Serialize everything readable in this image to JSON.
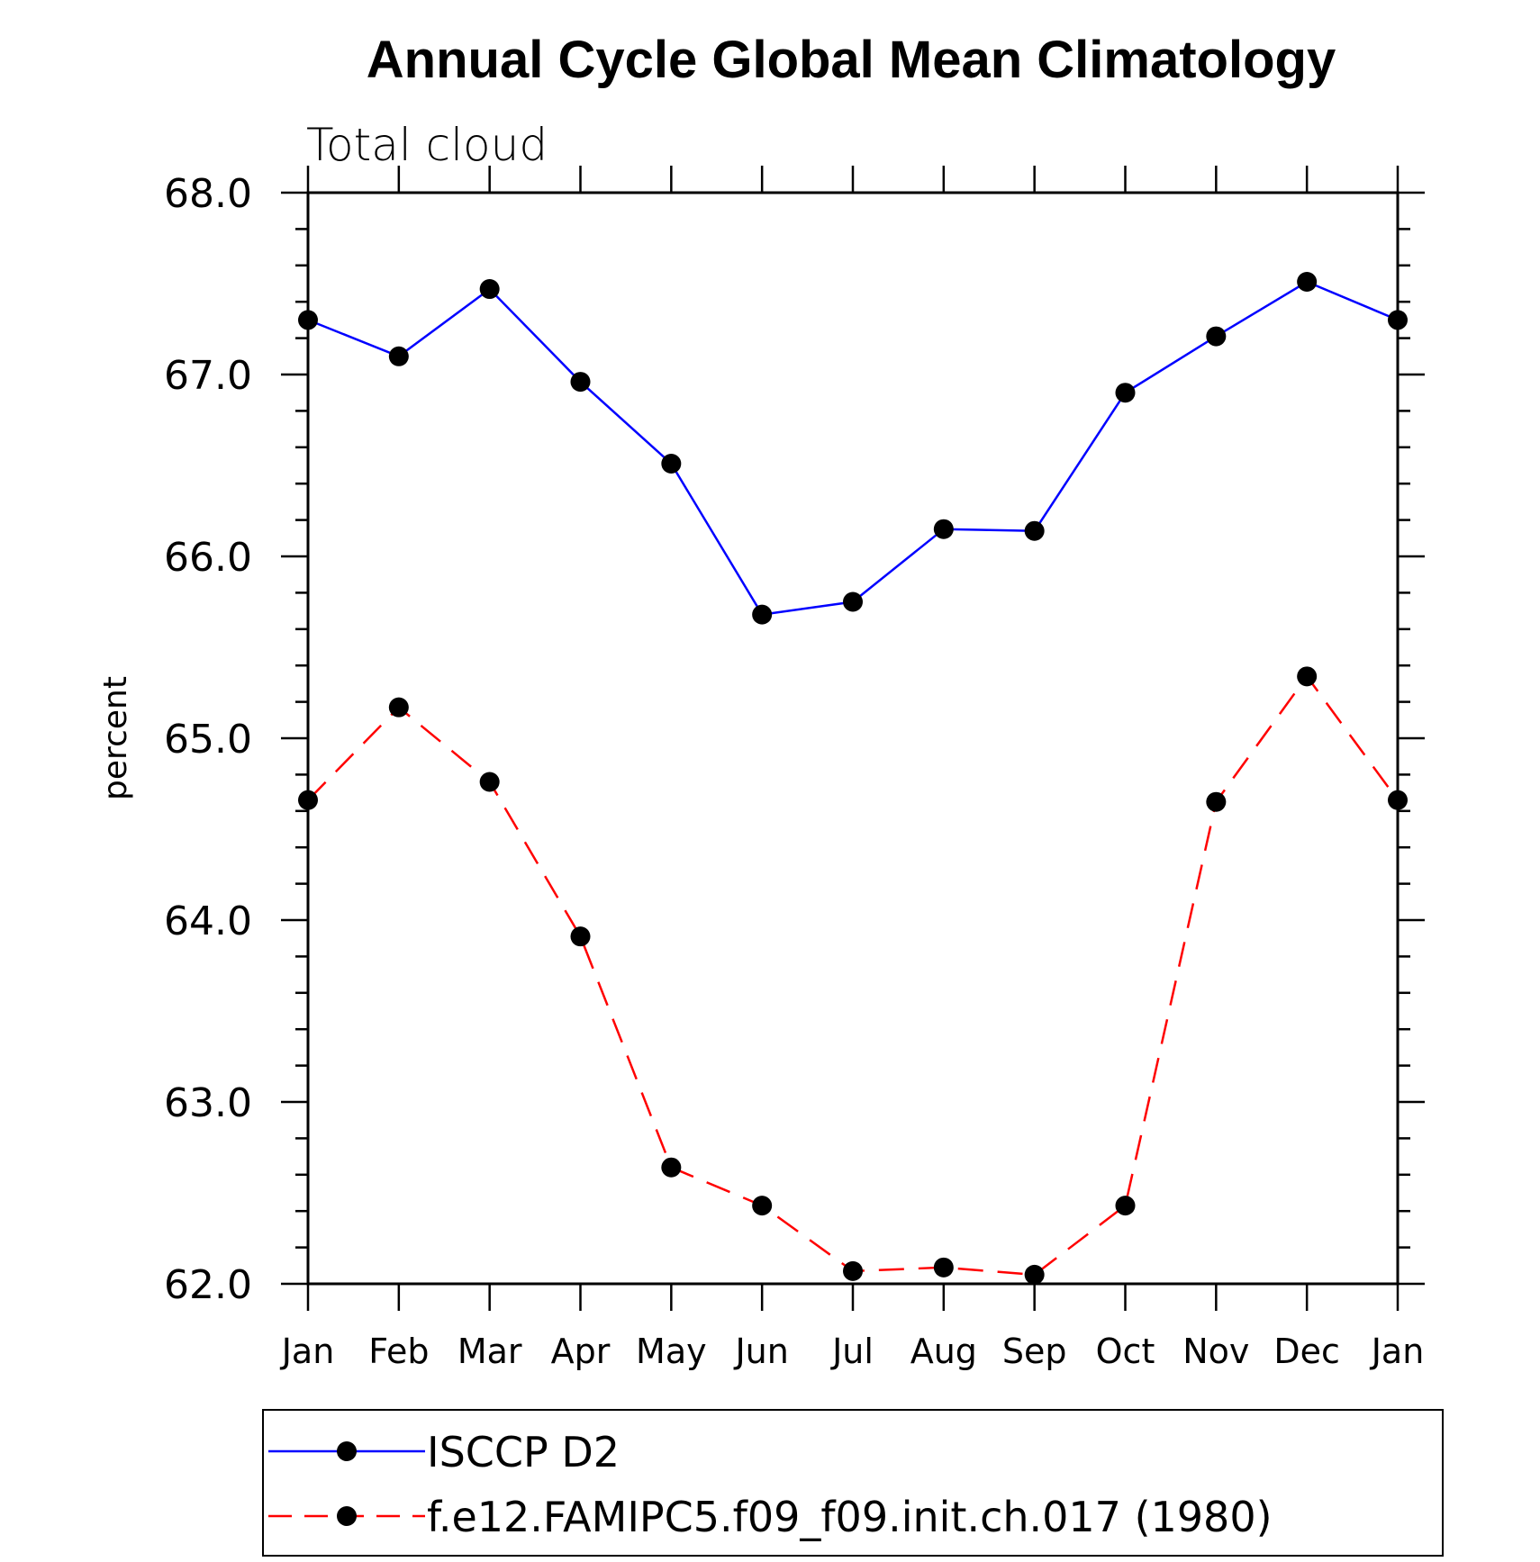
{
  "chart_data": {
    "type": "line",
    "title": "Annual Cycle Global Mean Climatology",
    "subtitle": "Total cloud",
    "xlabel": "",
    "ylabel": "percent",
    "categories": [
      "Jan",
      "Feb",
      "Mar",
      "Apr",
      "May",
      "Jun",
      "Jul",
      "Aug",
      "Sep",
      "Oct",
      "Nov",
      "Dec",
      "Jan"
    ],
    "ylim": [
      62.0,
      68.0
    ],
    "yticks": [
      "62.0",
      "63.0",
      "64.0",
      "65.0",
      "66.0",
      "67.0",
      "68.0"
    ],
    "grid": false,
    "legend_position": "bottom",
    "series": [
      {
        "name": "ISCCP D2",
        "color": "#0000ff",
        "dash": "solid",
        "marker": "filled-circle",
        "values": [
          67.3,
          67.1,
          67.47,
          66.96,
          66.51,
          65.68,
          65.75,
          66.15,
          66.14,
          66.9,
          67.21,
          67.51,
          67.3
        ]
      },
      {
        "name": "f.e12.FAMIPC5.f09_f09.init.ch.017 (1980)",
        "color": "#ff0000",
        "dash": "dashed",
        "marker": "filled-circle",
        "values": [
          64.66,
          65.17,
          64.76,
          63.91,
          62.64,
          62.43,
          62.07,
          62.09,
          62.05,
          62.43,
          64.65,
          65.34,
          64.66
        ]
      }
    ]
  }
}
